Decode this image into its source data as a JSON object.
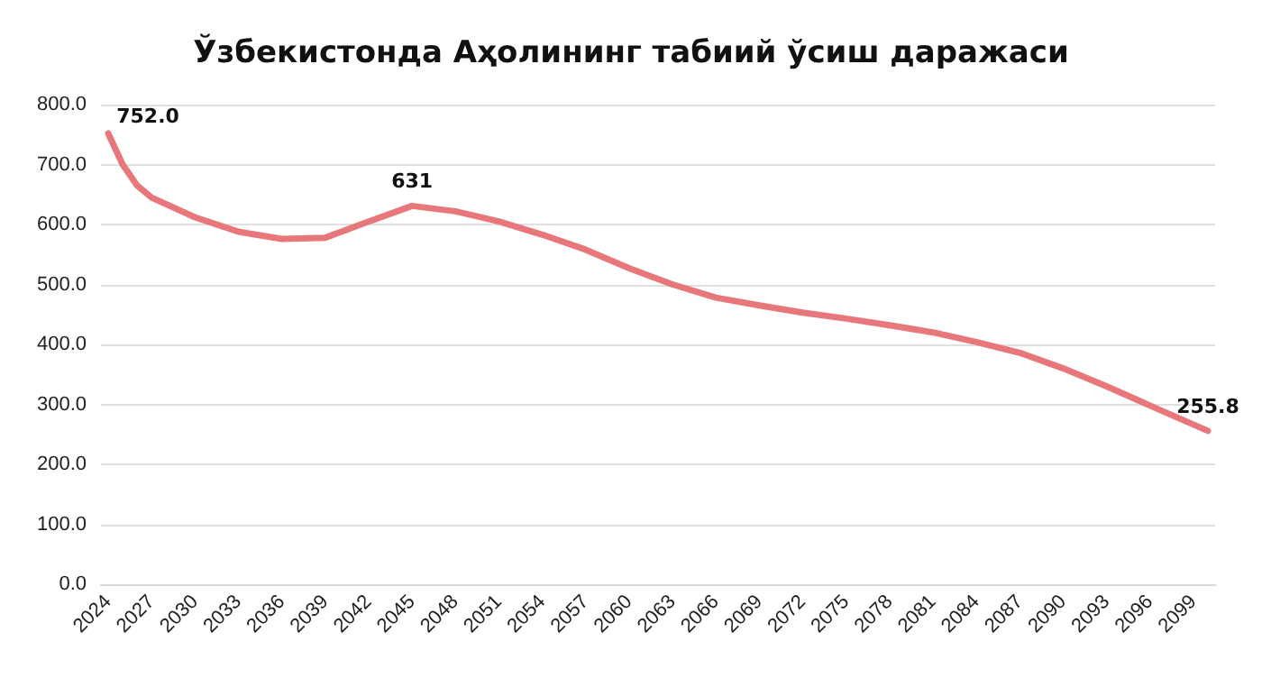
{
  "chart_data": {
    "type": "line",
    "title": "Ўзбекистонда Аҳолининг табиий ўсиш даражаси",
    "x": [
      2024,
      2025,
      2026,
      2027,
      2030,
      2033,
      2036,
      2039,
      2042,
      2045,
      2048,
      2051,
      2054,
      2057,
      2060,
      2063,
      2066,
      2069,
      2072,
      2075,
      2078,
      2081,
      2084,
      2087,
      2090,
      2093,
      2096,
      2100
    ],
    "series": [
      {
        "color": "#e8777b",
        "values": [
          752,
          700,
          665,
          645,
          612,
          588,
          576,
          578,
          605,
          631,
          622,
          605,
          583,
          558,
          527,
          500,
          478,
          465,
          453,
          443,
          432,
          420,
          404,
          386,
          360,
          330,
          298,
          255.8
        ],
        "value_labels": [
          "752.0",
          null,
          null,
          null,
          null,
          null,
          null,
          null,
          null,
          "631",
          null,
          null,
          null,
          null,
          null,
          null,
          null,
          null,
          null,
          null,
          null,
          null,
          null,
          null,
          null,
          null,
          null,
          "255.8"
        ]
      }
    ],
    "xlim": [
      2023.5,
      2100.5
    ],
    "xticks": [
      2024,
      2027,
      2030,
      2033,
      2036,
      2039,
      2042,
      2045,
      2048,
      2051,
      2054,
      2057,
      2060,
      2063,
      2066,
      2069,
      2072,
      2075,
      2078,
      2081,
      2084,
      2087,
      2090,
      2093,
      2096,
      2099
    ],
    "ylim": [
      0,
      800
    ],
    "yticks": [
      {
        "value": 0,
        "label": "0.0"
      },
      {
        "value": 100,
        "label": "100.0"
      },
      {
        "value": 200,
        "label": "200.0"
      },
      {
        "value": 300,
        "label": "300.0"
      },
      {
        "value": 400,
        "label": "400.0"
      },
      {
        "value": 500,
        "label": "500.0"
      },
      {
        "value": 600,
        "label": "600.0"
      },
      {
        "value": 700,
        "label": "700.0"
      },
      {
        "value": 800,
        "label": "800.0"
      }
    ],
    "grid": "y",
    "marker": "none",
    "line_style": "solid"
  }
}
